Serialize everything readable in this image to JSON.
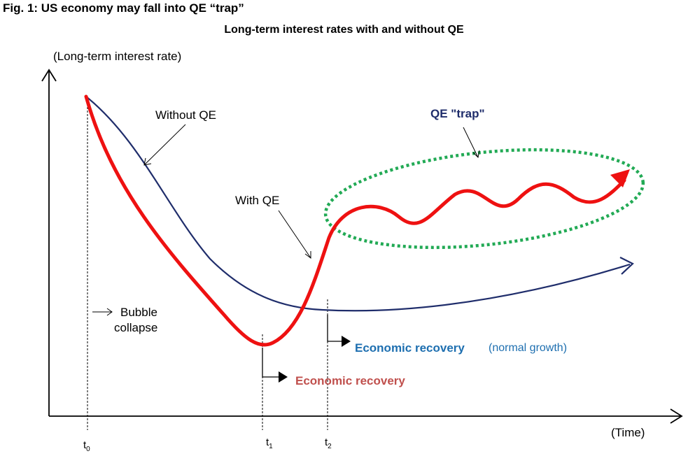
{
  "header": {
    "fig_title": "Fig. 1: US economy may fall into QE “trap”",
    "subtitle": "Long-term interest rates with and without QE"
  },
  "axes": {
    "y_label": "(Long-term interest rate)",
    "x_label": "(Time)"
  },
  "annotations": {
    "without_qe": "Without QE",
    "with_qe": "With QE",
    "qe_trap": "QE \"trap\"",
    "bubble_line1": "Bubble",
    "bubble_line2": "collapse",
    "recovery_red": "Economic recovery",
    "recovery_blue": "Economic recovery",
    "recovery_blue_note": "(normal growth)"
  },
  "ticks": {
    "t0": {
      "base": "t",
      "sub": "0"
    },
    "t1": {
      "base": "t",
      "sub": "1"
    },
    "t2": {
      "base": "t",
      "sub": "2"
    }
  },
  "colors": {
    "with_qe_line": "#ee1111",
    "without_qe_line": "#1f2d6b",
    "trap_ellipse": "#22aa55",
    "recovery_blue": "#1e6fb0",
    "recovery_red": "#c0504d"
  }
}
